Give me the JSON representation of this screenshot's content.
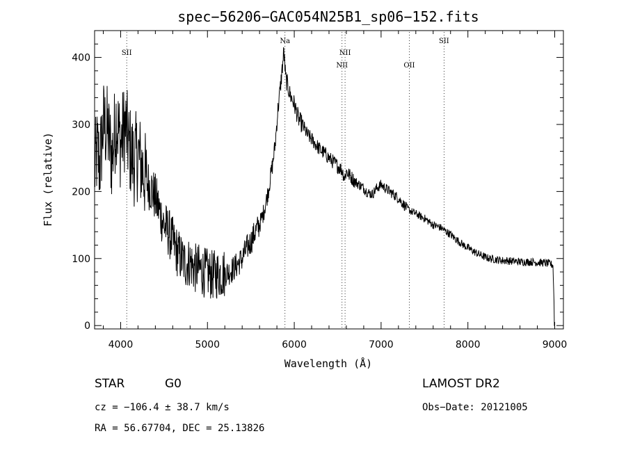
{
  "chart_data": {
    "type": "line",
    "title": "spec−56206−GAC054N25B1_sp06−152.fits",
    "xlabel": "Wavelength (Å)",
    "ylabel": "Flux (relative)",
    "xlim": [
      3700,
      9100
    ],
    "ylim": [
      -5,
      440
    ],
    "xticks": [
      4000,
      5000,
      6000,
      7000,
      8000,
      9000
    ],
    "yticks": [
      0,
      100,
      200,
      300,
      400
    ],
    "grid": false,
    "emission_lines": [
      {
        "label": "SII",
        "x": 4070,
        "label_row": 1
      },
      {
        "label": "Na",
        "x": 5893,
        "label_row": 0
      },
      {
        "label": "NII",
        "x": 6550,
        "label_row": 2
      },
      {
        "label": "NII",
        "x": 6585,
        "label_row": 1
      },
      {
        "label": "OII",
        "x": 7325,
        "label_row": 2
      },
      {
        "label": "SII",
        "x": 7725,
        "label_row": 0
      }
    ],
    "series": [
      {
        "x": [
          3700,
          3730,
          3760,
          3800,
          3850,
          3900,
          3950,
          4000,
          4050,
          4100,
          4150,
          4200,
          4250,
          4300,
          4350,
          4400,
          4450,
          4500,
          4550,
          4600,
          4650,
          4700,
          4750,
          4800,
          4850,
          4900,
          4950,
          5000,
          5050,
          5100,
          5150,
          5200,
          5250,
          5300,
          5350,
          5400,
          5450,
          5500,
          5550,
          5600,
          5650,
          5700,
          5750,
          5780,
          5810,
          5840,
          5870,
          5880,
          5900,
          5950,
          6000,
          6050,
          6100,
          6150,
          6200,
          6250,
          6300,
          6350,
          6400,
          6450,
          6500,
          6550,
          6580,
          6600,
          6650,
          6700,
          6750,
          6800,
          6850,
          6900,
          6950,
          7000,
          7050,
          7100,
          7150,
          7200,
          7250,
          7300,
          7350,
          7400,
          7450,
          7500,
          7550,
          7600,
          7650,
          7700,
          7750,
          7800,
          7850,
          7900,
          7950,
          8000,
          8050,
          8100,
          8150,
          8200,
          8250,
          8300,
          8350,
          8400,
          8450,
          8500,
          8550,
          8600,
          8650,
          8700,
          8750,
          8800,
          8850,
          8900,
          8950,
          8980,
          9000
        ],
        "y": [
          230,
          260,
          240,
          300,
          290,
          250,
          310,
          270,
          300,
          265,
          245,
          255,
          235,
          215,
          205,
          190,
          170,
          150,
          140,
          125,
          110,
          100,
          92,
          95,
          85,
          85,
          80,
          78,
          75,
          76,
          78,
          78,
          80,
          85,
          92,
          100,
          115,
          125,
          140,
          150,
          170,
          200,
          240,
          270,
          320,
          355,
          395,
          410,
          370,
          345,
          330,
          308,
          298,
          285,
          278,
          270,
          262,
          257,
          250,
          244,
          238,
          232,
          220,
          230,
          222,
          215,
          210,
          205,
          198,
          196,
          205,
          210,
          205,
          200,
          195,
          190,
          182,
          175,
          170,
          167,
          163,
          160,
          155,
          150,
          148,
          145,
          140,
          136,
          130,
          125,
          120,
          116,
          112,
          108,
          105,
          102,
          100,
          99,
          98,
          97,
          97,
          96,
          96,
          95,
          95,
          95,
          95,
          94,
          94,
          93,
          92,
          90,
          0
        ]
      }
    ]
  },
  "footer": {
    "object": "STAR",
    "subclass": "G0",
    "survey": "LAMOST DR2",
    "cz": "cz = −106.4 ± 38.7 km/s",
    "obs_date": "Obs−Date: 20121005",
    "coords": "RA =  56.67704, DEC =  25.13826"
  }
}
